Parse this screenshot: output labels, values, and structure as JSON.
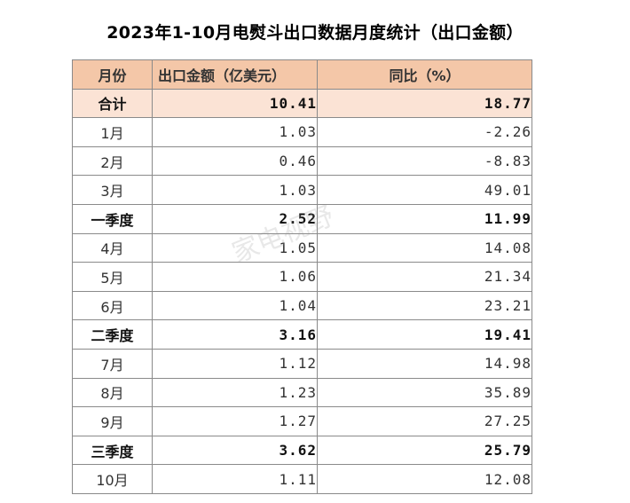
{
  "title": "2023年1-10月电熨斗出口数据月度统计（出口金额）",
  "watermark": "家电视野",
  "table": {
    "headers": [
      "月份",
      "出口金额（亿美元）",
      "同比（%）"
    ],
    "rows": [
      {
        "name": "合计",
        "amount": "10.41",
        "yoy": "18.77"
      },
      {
        "name": "1月",
        "amount": "1.03",
        "yoy": "-2.26"
      },
      {
        "name": "2月",
        "amount": "0.46",
        "yoy": "-8.83"
      },
      {
        "name": "3月",
        "amount": "1.03",
        "yoy": "49.01"
      },
      {
        "name": "一季度",
        "amount": "2.52",
        "yoy": "11.99"
      },
      {
        "name": "4月",
        "amount": "1.05",
        "yoy": "14.08"
      },
      {
        "name": "5月",
        "amount": "1.06",
        "yoy": "21.34"
      },
      {
        "name": "6月",
        "amount": "1.04",
        "yoy": "23.21"
      },
      {
        "name": "二季度",
        "amount": "3.16",
        "yoy": "19.41"
      },
      {
        "name": "7月",
        "amount": "1.12",
        "yoy": "14.98"
      },
      {
        "name": "8月",
        "amount": "1.23",
        "yoy": "35.89"
      },
      {
        "name": "9月",
        "amount": "1.27",
        "yoy": "27.25"
      },
      {
        "name": "三季度",
        "amount": "3.62",
        "yoy": "25.79"
      },
      {
        "name": "10月",
        "amount": "1.11",
        "yoy": "12.08"
      }
    ]
  },
  "colors": {
    "header_bg": "#f4c7a8",
    "total_bg": "#fbe3d5",
    "border": "#8a8a8a"
  }
}
